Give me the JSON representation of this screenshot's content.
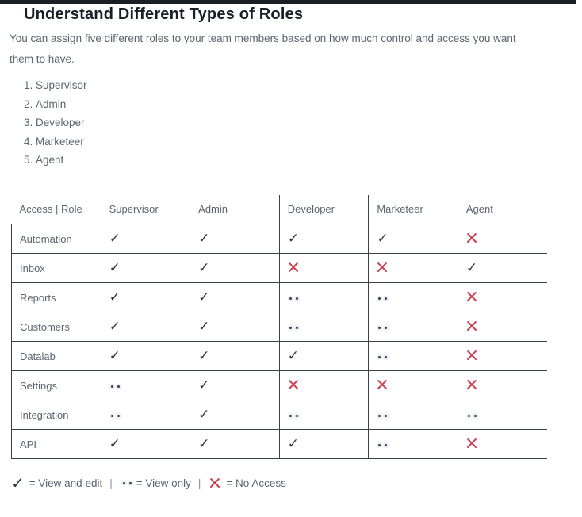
{
  "heading": "Understand Different Types of Roles",
  "intro": "You can assign five different roles to your team members based on how much control and access you want them to have.",
  "roles_list": [
    "Supervisor",
    "Admin",
    "Developer",
    "Marketeer",
    "Agent"
  ],
  "table": {
    "columns": [
      "Access | Role",
      "Supervisor",
      "Admin",
      "Developer",
      "Marketeer",
      "Agent"
    ],
    "rows": [
      {
        "label": "Automation",
        "cells": [
          "edit",
          "edit",
          "edit",
          "edit",
          "none"
        ]
      },
      {
        "label": "Inbox",
        "cells": [
          "edit",
          "edit",
          "none",
          "none",
          "edit"
        ]
      },
      {
        "label": "Reports",
        "cells": [
          "edit",
          "edit",
          "view",
          "view",
          "none"
        ]
      },
      {
        "label": "Customers",
        "cells": [
          "edit",
          "edit",
          "view",
          "view",
          "none"
        ]
      },
      {
        "label": "Datalab",
        "cells": [
          "edit",
          "edit",
          "edit",
          "view",
          "none"
        ]
      },
      {
        "label": "Settings",
        "cells": [
          "view",
          "edit",
          "none",
          "none",
          "none"
        ]
      },
      {
        "label": "Integration",
        "cells": [
          "view",
          "edit",
          "view",
          "view",
          "view"
        ]
      },
      {
        "label": "API",
        "cells": [
          "edit",
          "edit",
          "edit",
          "view",
          "none"
        ]
      }
    ],
    "access_values": {
      "edit": "View and edit",
      "view": "View only",
      "none": "No Access"
    }
  },
  "legend": {
    "edit_label": "= View and edit",
    "view_label": "= View only",
    "none_label": "= No Access",
    "separator": "|"
  },
  "icons": {
    "check": "✓",
    "view_only": "two-dots-icon",
    "cross": "x-mark-icon"
  },
  "colors": {
    "top_bar": "#1a1f26",
    "heading_dark": "#171f28",
    "text_gray": "#5b6571",
    "border_dark": "#3a424c",
    "check_dark": "#2f353b",
    "accent_red": "#d23b4e",
    "dot_halo": "#e8ecf1",
    "dot_core": "#394252"
  }
}
